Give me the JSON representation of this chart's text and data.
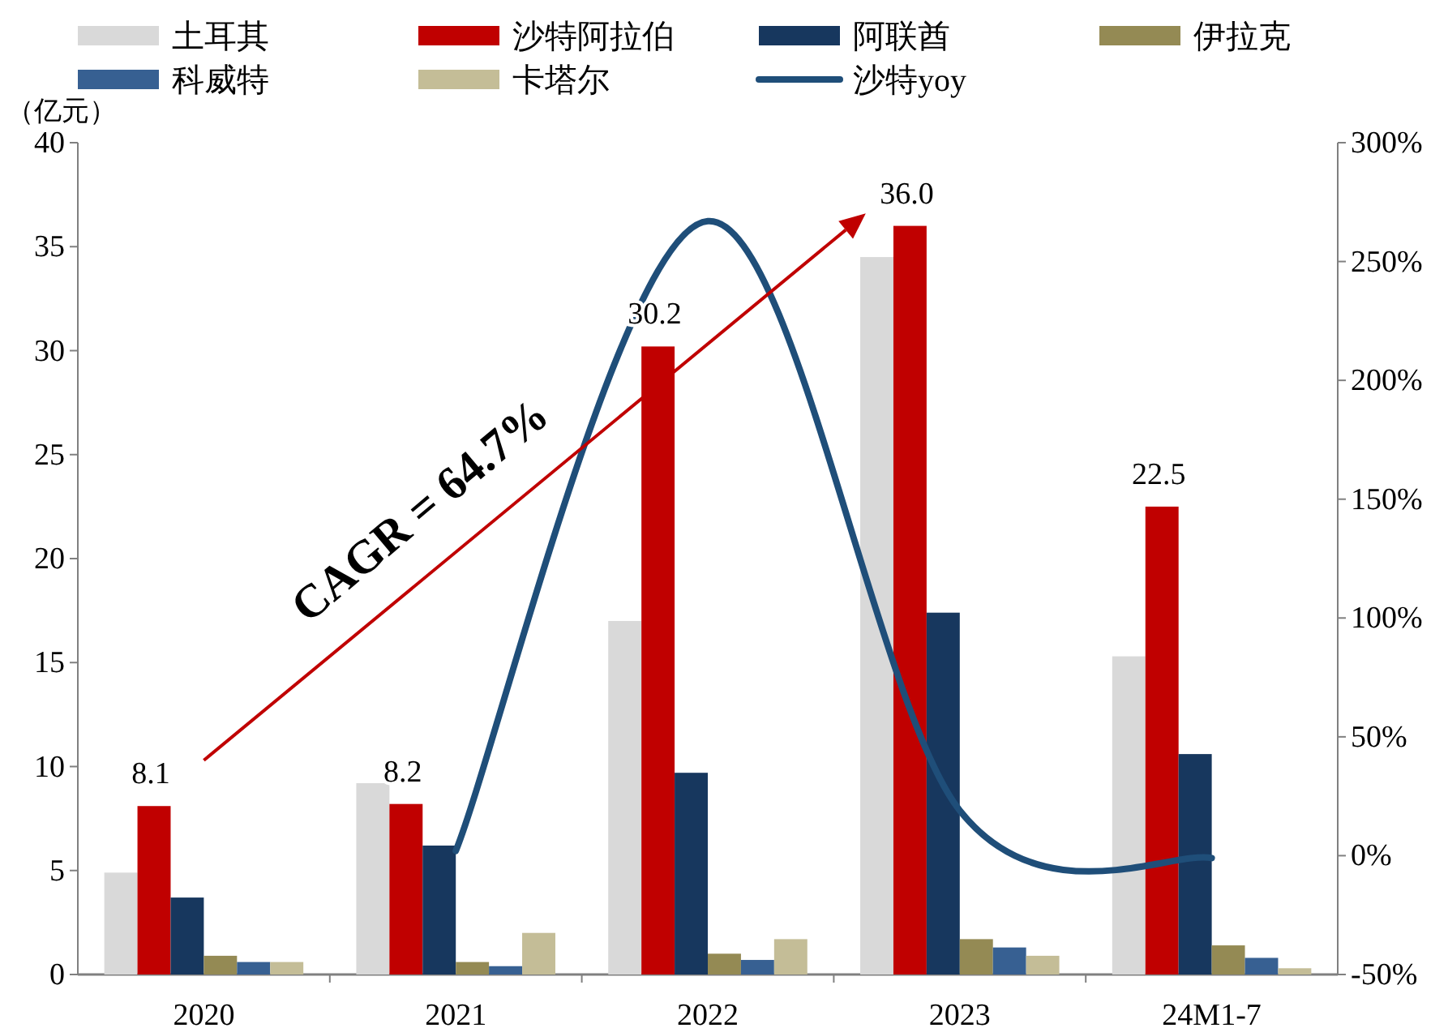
{
  "chart_data": {
    "type": "bar",
    "ylabel": "（亿元）",
    "categories": [
      "2020",
      "2021",
      "2022",
      "2023",
      "24M1-7"
    ],
    "series": [
      {
        "name": "土耳其",
        "color": "#d9d9d9",
        "values": [
          4.9,
          9.2,
          17.0,
          34.5,
          15.3
        ]
      },
      {
        "name": "沙特阿拉伯",
        "color": "#c00000",
        "values": [
          8.1,
          8.2,
          30.2,
          36.0,
          22.5
        ],
        "value_labels": [
          "8.1",
          "8.2",
          "30.2",
          "36.0",
          "22.5"
        ]
      },
      {
        "name": "阿联酋",
        "color": "#17375e",
        "values": [
          3.7,
          6.2,
          9.7,
          17.4,
          10.6
        ]
      },
      {
        "name": "伊拉克",
        "color": "#948a54",
        "values": [
          0.9,
          0.6,
          1.0,
          1.7,
          1.4
        ]
      },
      {
        "name": "科威特",
        "color": "#376092",
        "values": [
          0.6,
          0.4,
          0.7,
          1.3,
          0.8
        ]
      },
      {
        "name": "卡塔尔",
        "color": "#c4bd97",
        "values": [
          0.6,
          2.0,
          1.7,
          0.9,
          0.3
        ]
      },
      {
        "name": "沙特yoy",
        "type": "line",
        "axis": "y2",
        "color": "#1f4e79",
        "values": [
          null,
          2,
          267,
          19,
          -1
        ]
      }
    ],
    "ylim": [
      0,
      40
    ],
    "yticks": [
      0,
      5,
      10,
      15,
      20,
      25,
      30,
      35,
      40
    ],
    "y2lim": [
      -50,
      300
    ],
    "y2ticks": [
      {
        "value": -50,
        "label": "-50%"
      },
      {
        "value": 0,
        "label": "0%"
      },
      {
        "value": 50,
        "label": "50%"
      },
      {
        "value": 100,
        "label": "100%"
      },
      {
        "value": 150,
        "label": "150%"
      },
      {
        "value": 200,
        "label": "200%"
      },
      {
        "value": 250,
        "label": "250%"
      },
      {
        "value": 300,
        "label": "300%"
      }
    ],
    "annotations": [
      "CAGR = 64.7%"
    ],
    "legend": "top",
    "grid": false,
    "marker": "none",
    "line_style": "solid"
  }
}
